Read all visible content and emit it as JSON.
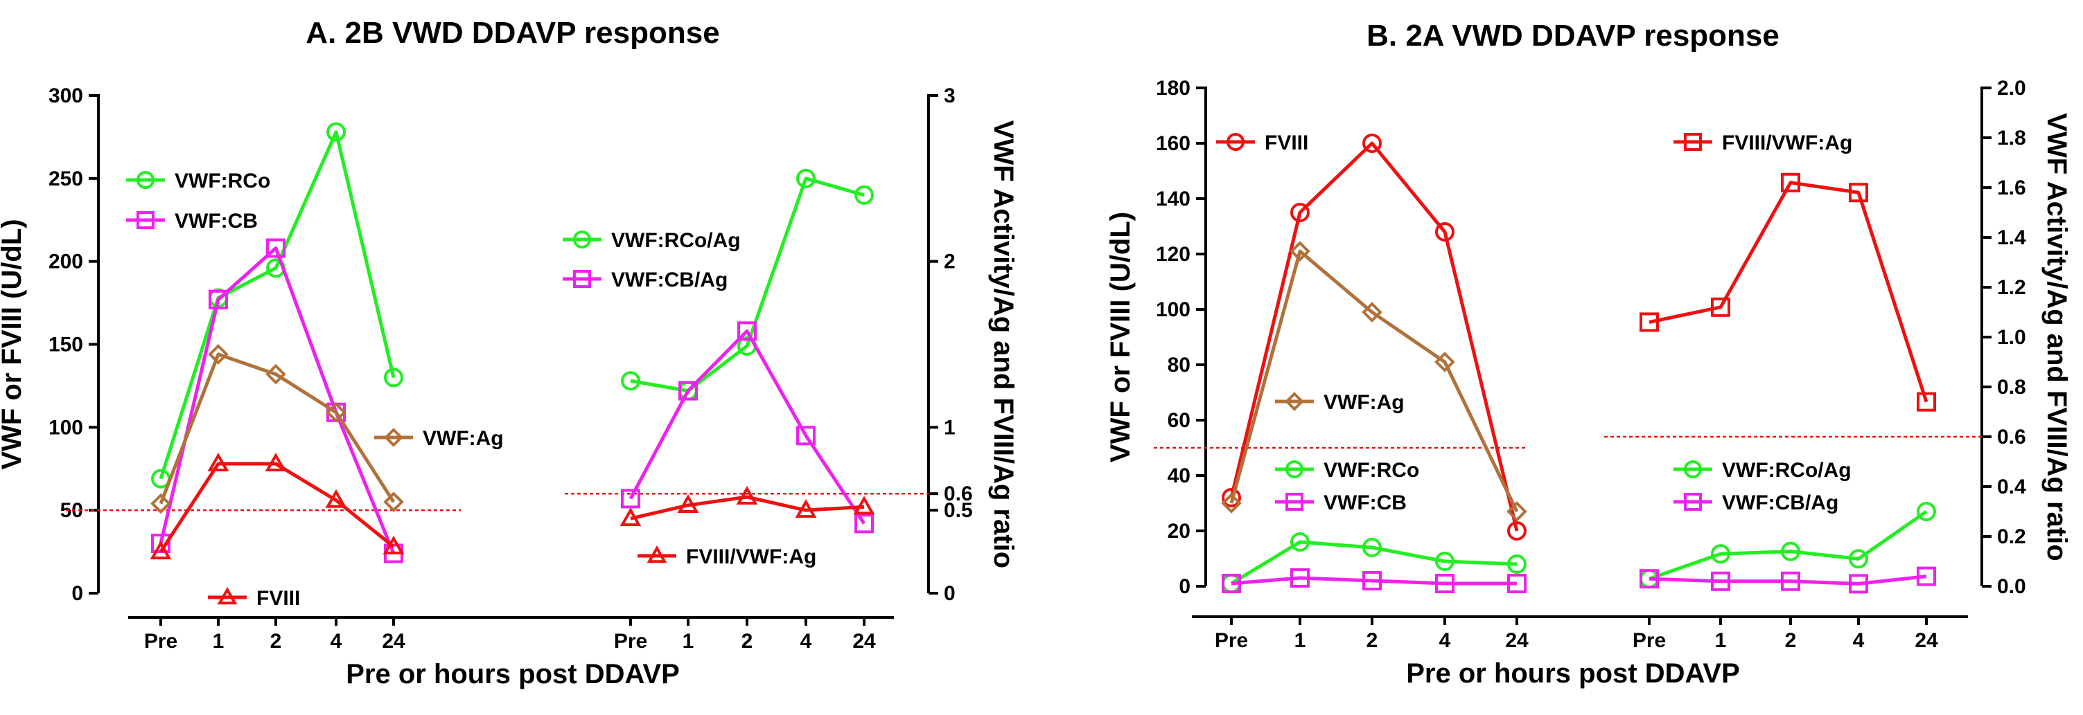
{
  "figure": {
    "panel_a_title": "A. 2B VWD DDAVP response",
    "panel_b_title": "B. 2A VWD DDAVP response"
  },
  "chart_data": [
    {
      "type": "line",
      "panel": "A",
      "title": "A. 2B VWD DDAVP response",
      "xlabel": "Pre or hours post DDAVP",
      "ylabel": "VWF or FVIII (U/dL)",
      "y2label": "VWF Activity/Ag and FVIII/Ag ratio",
      "categories": [
        "Pre",
        "1",
        "2",
        "4",
        "24"
      ],
      "left": {
        "ylim": [
          0,
          300
        ],
        "yticks": [
          "0",
          "50",
          "100",
          "150",
          "200",
          "250",
          "300"
        ],
        "reference_line": 50,
        "series": [
          {
            "name": "VWF:RCo",
            "color": "#22ee22",
            "marker": "circle",
            "values": [
              69,
              178,
              196,
              278,
              130
            ]
          },
          {
            "name": "VWF:CB",
            "color": "#ee22ee",
            "marker": "square",
            "values": [
              30,
              177,
              208,
              109,
              24
            ]
          },
          {
            "name": "VWF:Ag",
            "color": "#b0723a",
            "marker": "diamond",
            "values": [
              54,
              144,
              132,
              109,
              55
            ]
          },
          {
            "name": "FVIII",
            "color": "#ee1111",
            "marker": "triangle",
            "values": [
              25,
              78,
              78,
              56,
              28
            ]
          }
        ]
      },
      "right": {
        "ylim": [
          0,
          3
        ],
        "yticks": [
          "0",
          "0.5",
          "0.6",
          "1",
          "2",
          "3"
        ],
        "reference_line": 0.6,
        "series": [
          {
            "name": "VWF:RCo/Ag",
            "color": "#22ee22",
            "marker": "circle",
            "values": [
              1.28,
              1.22,
              1.49,
              2.5,
              2.4
            ]
          },
          {
            "name": "VWF:CB/Ag",
            "color": "#ee22ee",
            "marker": "square",
            "values": [
              0.57,
              1.22,
              1.58,
              0.95,
              0.42
            ]
          },
          {
            "name": "FVIII/VWF:Ag",
            "color": "#ee1111",
            "marker": "triangle",
            "values": [
              0.45,
              0.53,
              0.58,
              0.5,
              0.52
            ]
          }
        ]
      }
    },
    {
      "type": "line",
      "panel": "B",
      "title": "B. 2A VWD DDAVP response",
      "xlabel": "Pre or hours post DDAVP",
      "ylabel": "VWF or FVIII (U/dL)",
      "y2label": "VWF Activity/Ag and FVIII/Ag ratio",
      "categories": [
        "Pre",
        "1",
        "2",
        "4",
        "24"
      ],
      "left": {
        "ylim": [
          0,
          180
        ],
        "yticks": [
          "0",
          "20",
          "40",
          "60",
          "80",
          "100",
          "120",
          "140",
          "160",
          "180"
        ],
        "reference_line": 50,
        "series": [
          {
            "name": "FVIII",
            "color": "#ee1111",
            "marker": "circle",
            "values": [
              32,
              135,
              160,
              128,
              20
            ]
          },
          {
            "name": "VWF:Ag",
            "color": "#b0723a",
            "marker": "diamond",
            "values": [
              30,
              121,
              99,
              81,
              27
            ]
          },
          {
            "name": "VWF:RCo",
            "color": "#22ee22",
            "marker": "circle",
            "values": [
              1,
              16,
              14,
              9,
              8
            ]
          },
          {
            "name": "VWF:CB",
            "color": "#ee22ee",
            "marker": "square",
            "values": [
              1,
              3,
              2,
              1,
              1
            ]
          }
        ]
      },
      "right": {
        "ylim": [
          0,
          2.0
        ],
        "yticks": [
          "0.0",
          "0.2",
          "0.4",
          "0.6",
          "0.8",
          "1.0",
          "1.2",
          "1.4",
          "1.6",
          "1.8",
          "2.0"
        ],
        "reference_line": 0.6,
        "series": [
          {
            "name": "FVIII/VWF:Ag",
            "color": "#ee1111",
            "marker": "square",
            "values": [
              1.06,
              1.12,
              1.62,
              1.58,
              0.74
            ]
          },
          {
            "name": "VWF:RCo/Ag",
            "color": "#22ee22",
            "marker": "circle",
            "values": [
              0.03,
              0.13,
              0.14,
              0.11,
              0.3
            ]
          },
          {
            "name": "VWF:CB/Ag",
            "color": "#ee22ee",
            "marker": "square",
            "values": [
              0.03,
              0.02,
              0.02,
              0.01,
              0.04
            ]
          }
        ]
      }
    }
  ]
}
